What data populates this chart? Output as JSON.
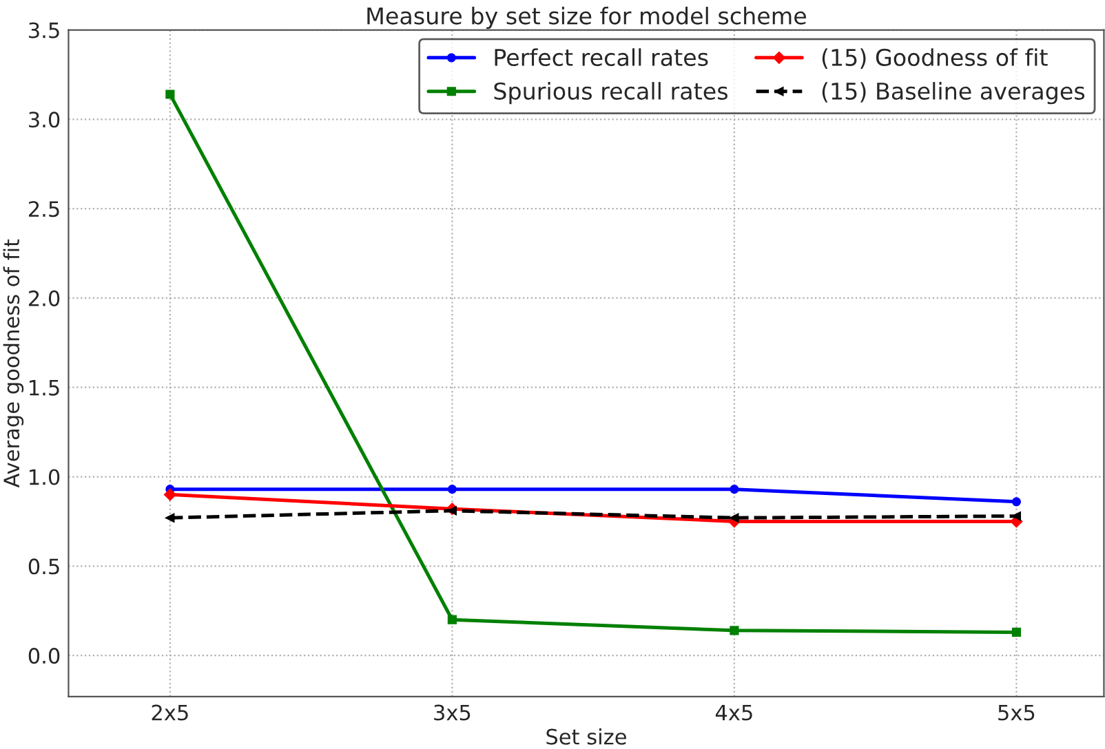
{
  "chart_data": {
    "type": "line",
    "title": "Measure by set size for model scheme",
    "xlabel": "Set size",
    "ylabel": "Average goodness of fit",
    "categories": [
      "2x5",
      "3x5",
      "4x5",
      "5x5"
    ],
    "series": [
      {
        "name": "Perfect recall rates",
        "color": "#0000ff",
        "marker": "circle",
        "line_style": "solid",
        "values": [
          0.93,
          0.93,
          0.93,
          0.86
        ]
      },
      {
        "name": "Spurious recall rates",
        "color": "#008000",
        "marker": "square",
        "line_style": "solid",
        "values": [
          3.14,
          0.2,
          0.14,
          0.13
        ]
      },
      {
        "name": "(15) Goodness of fit",
        "color": "#ff0000",
        "marker": "diamond",
        "line_style": "solid",
        "values": [
          0.9,
          0.82,
          0.75,
          0.75
        ]
      },
      {
        "name": "(15) Baseline averages",
        "color": "#000000",
        "marker": "triangle",
        "line_style": "dashed",
        "values": [
          0.77,
          0.81,
          0.77,
          0.78
        ]
      }
    ],
    "ylim": [
      -0.23,
      3.5
    ],
    "yticks": [
      {
        "value": 0,
        "label": "0.0"
      },
      {
        "value": 0.5,
        "label": "0.5"
      },
      {
        "value": 1,
        "label": "1.0"
      },
      {
        "value": 1.5,
        "label": "1.5"
      },
      {
        "value": 2,
        "label": "2.0"
      },
      {
        "value": 2.5,
        "label": "2.5"
      },
      {
        "value": 3,
        "label": "3.0"
      },
      {
        "value": 3.5,
        "label": "3.5"
      }
    ],
    "grid": true,
    "legend": "top right"
  }
}
